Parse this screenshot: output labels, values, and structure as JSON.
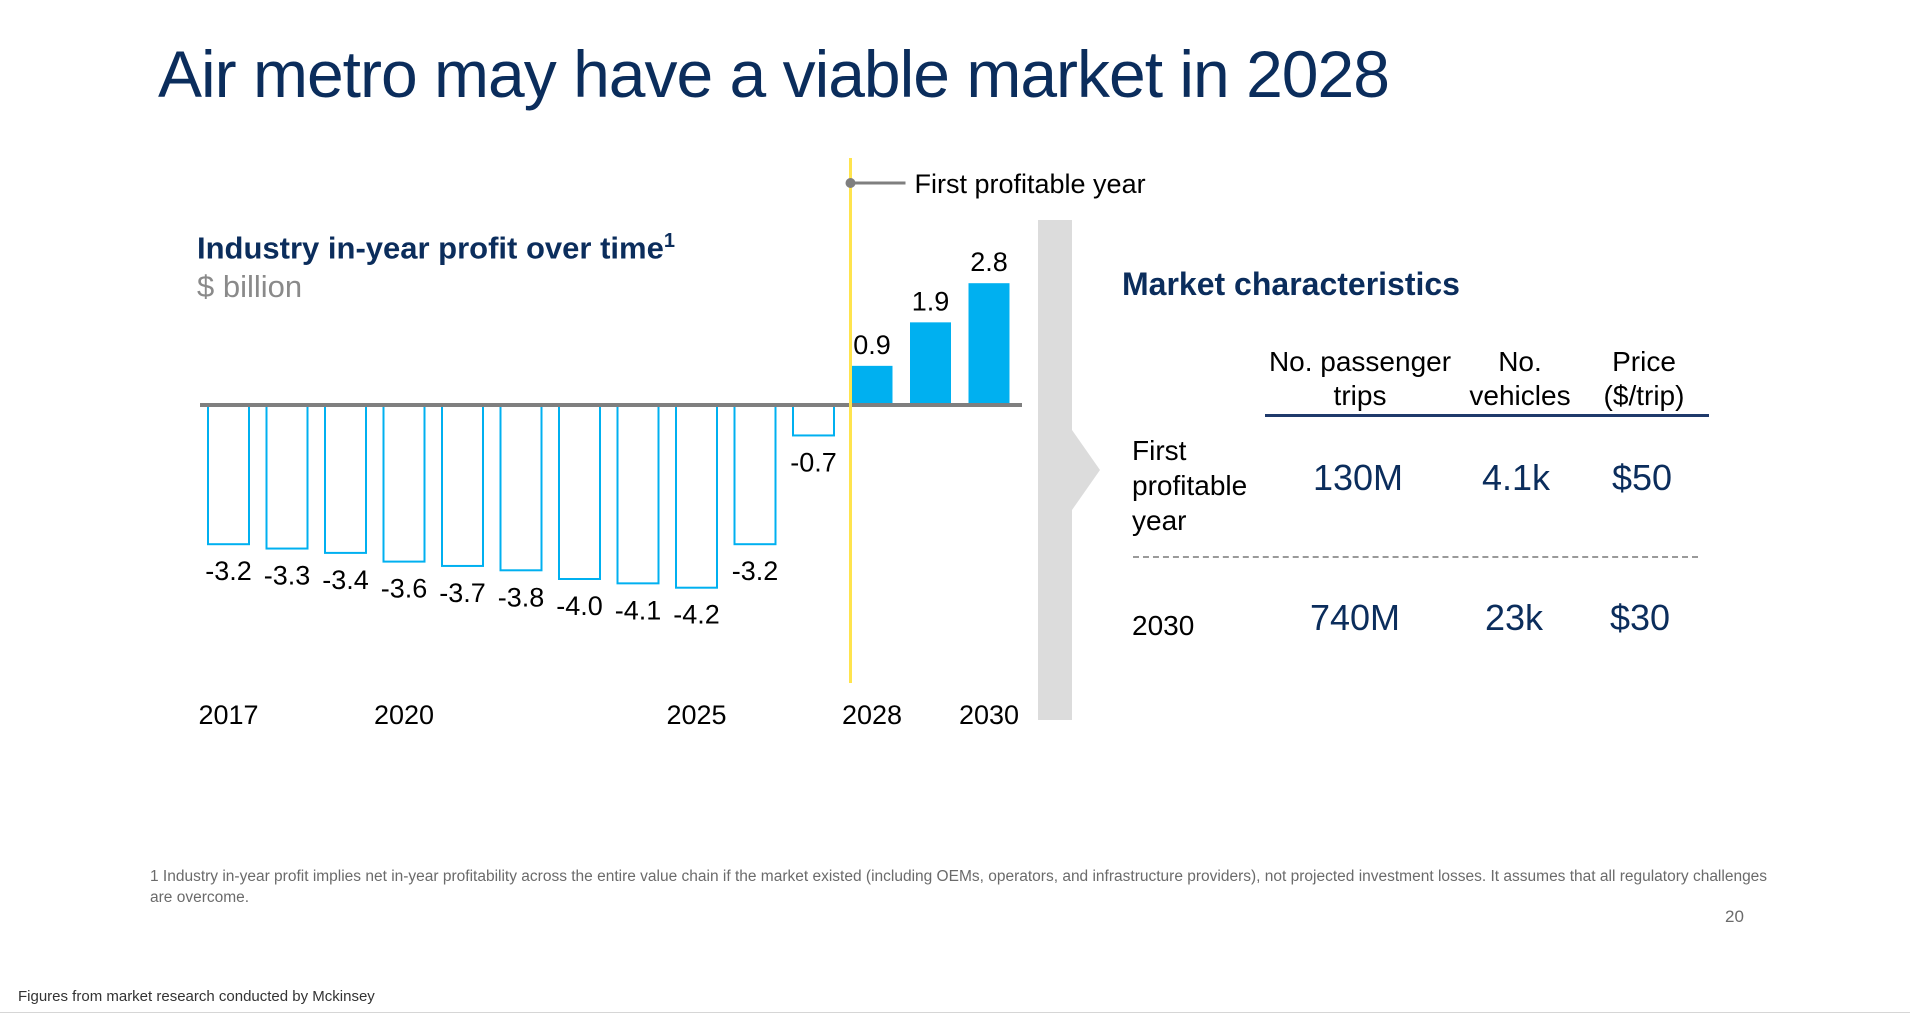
{
  "slide": {
    "title": "Air metro may have a viable market in 2028",
    "page_number": "20",
    "footnote": "1 Industry in-year profit implies net in-year profitability across the entire value chain if the market existed (including OEMs, operators, and infrastructure providers), not projected investment losses. It assumes that all regulatory challenges are overcome.",
    "source_note": "Figures from market research conducted by Mckinsey"
  },
  "chart_data": {
    "type": "bar",
    "title": "Industry in-year profit over time",
    "title_superscript": "1",
    "ylabel": "$ billion",
    "categories": [
      "2017",
      "2018",
      "2019",
      "2020",
      "2021",
      "2022",
      "2023",
      "2024",
      "2025",
      "2026",
      "2027",
      "2028",
      "2029",
      "2030"
    ],
    "values": [
      -3.2,
      -3.3,
      -3.4,
      -3.6,
      -3.7,
      -3.8,
      -4.0,
      -4.1,
      -4.2,
      -3.2,
      -0.7,
      0.9,
      1.9,
      2.8
    ],
    "value_labels": [
      "-3.2",
      "-3.3",
      "-3.4",
      "-3.6",
      "-3.7",
      "-3.8",
      "-4.0",
      "-4.1",
      "-4.2",
      "-3.2",
      "-0.7",
      "0.9",
      "1.9",
      "2.8"
    ],
    "x_tick_labels": [
      {
        "category": "2017",
        "label": "2017"
      },
      {
        "category": "2020",
        "label": "2020"
      },
      {
        "category": "2025",
        "label": "2025"
      },
      {
        "category": "2028",
        "label": "2028"
      },
      {
        "category": "2030",
        "label": "2030"
      }
    ],
    "marker": {
      "category": "2028",
      "label": "First profitable year"
    },
    "colors": {
      "negative_outline": "#00b0f0",
      "positive_fill": "#00b0f0",
      "axis": "#7f7f7f",
      "marker_line": "#ffe44d",
      "marker_leader": "#7f7f7f"
    },
    "grid": false,
    "legend": "none"
  },
  "market": {
    "title": "Market characteristics",
    "columns": [
      [
        "No. passenger",
        "trips"
      ],
      [
        "No.",
        "vehicles"
      ],
      [
        "Price",
        "($/trip)"
      ]
    ],
    "rows": [
      {
        "label": [
          "First",
          "profitable",
          "year"
        ],
        "values": [
          "130M",
          "4.1k",
          "$50"
        ]
      },
      {
        "label": [
          "2030"
        ],
        "values": [
          "740M",
          "23k",
          "$30"
        ]
      }
    ]
  }
}
